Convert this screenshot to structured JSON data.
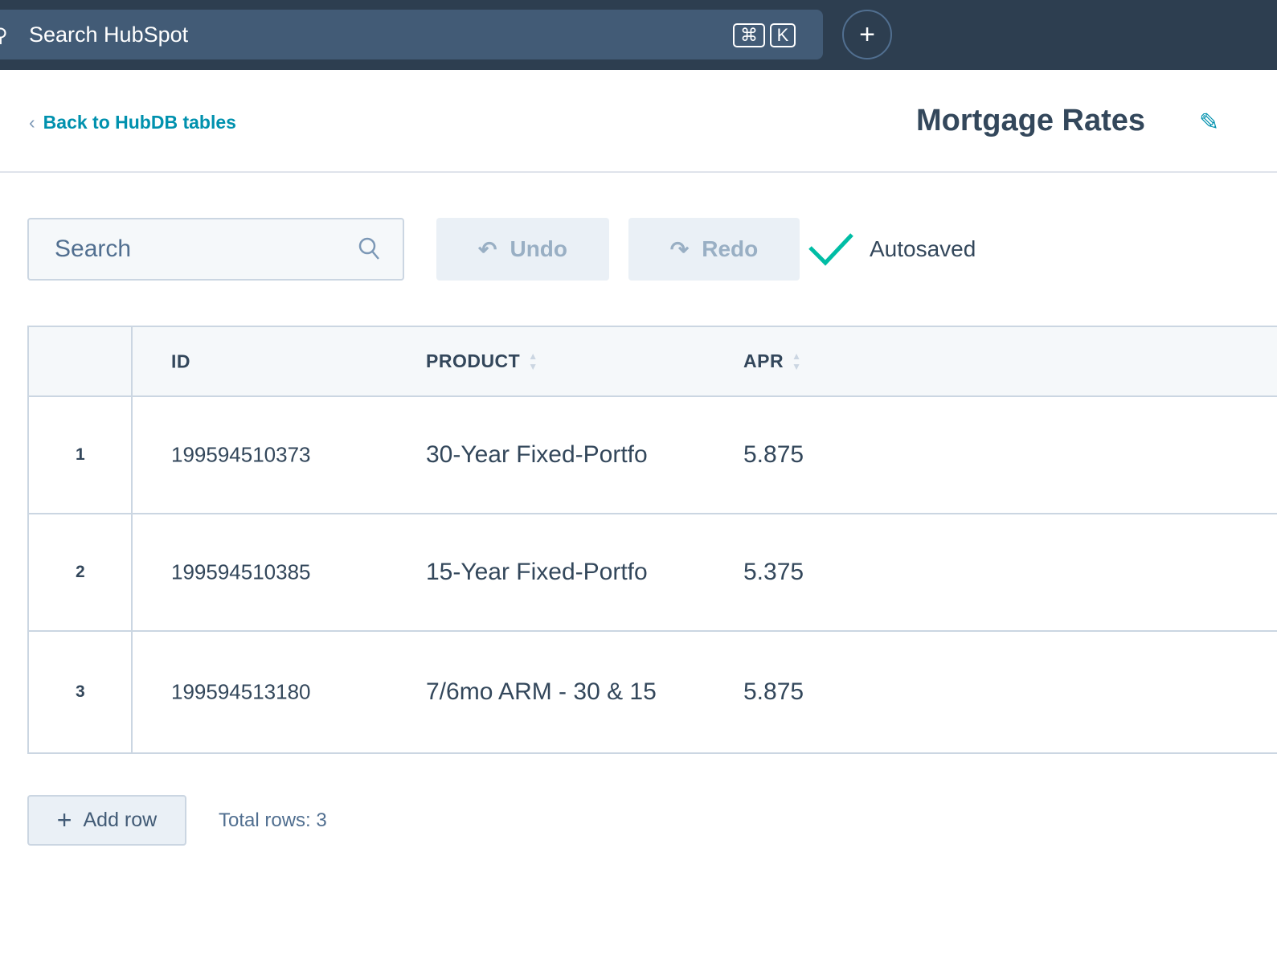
{
  "topbar": {
    "search_placeholder": "Search HubSpot",
    "shortcut_cmd": "⌘",
    "shortcut_key": "K",
    "create_label": "+"
  },
  "header": {
    "back_label": "Back to HubDB tables",
    "title": "Mortgage Rates"
  },
  "toolbar": {
    "search_placeholder": "Search",
    "undo_label": "Undo",
    "redo_label": "Redo",
    "status": "Autosaved",
    "status_color": "#00bda5"
  },
  "table": {
    "columns": [
      "ID",
      "PRODUCT",
      "APR"
    ],
    "rows": [
      {
        "num": "1",
        "id": "199594510373",
        "product": "30-Year Fixed-Portfo",
        "apr": "5.875"
      },
      {
        "num": "2",
        "id": "199594510385",
        "product": "15-Year Fixed-Portfo",
        "apr": "5.375"
      },
      {
        "num": "3",
        "id": "199594513180",
        "product": "7/6mo ARM - 30 & 15",
        "apr": "5.875"
      }
    ]
  },
  "footer": {
    "add_row_label": "Add row",
    "total_rows": "Total rows: 3"
  }
}
